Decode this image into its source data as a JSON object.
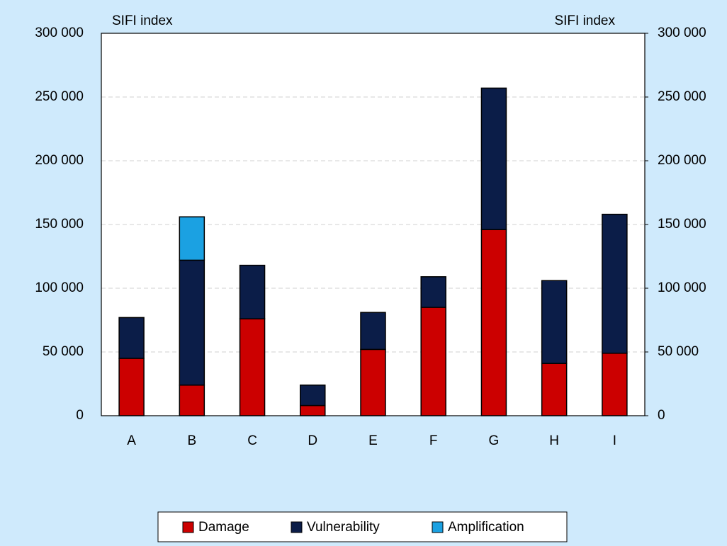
{
  "chart_data": {
    "type": "stacked_bar",
    "y_label": "SIFI index",
    "y2_label": "SIFI index",
    "categories": [
      "A",
      "B",
      "C",
      "D",
      "E",
      "F",
      "G",
      "H",
      "I"
    ],
    "series": [
      {
        "name": "Damage",
        "color": "#cc0000",
        "values": [
          45000,
          24000,
          76000,
          8000,
          52000,
          85000,
          146000,
          41000,
          49000
        ]
      },
      {
        "name": "Vulnerability",
        "color": "#0b1d48",
        "values": [
          32000,
          98000,
          42000,
          16000,
          29000,
          24000,
          111000,
          65000,
          109000
        ]
      },
      {
        "name": "Amplification",
        "color": "#1ba1e2",
        "values": [
          0,
          34000,
          0,
          0,
          0,
          0,
          0,
          0,
          0
        ]
      }
    ],
    "ylim": [
      0,
      300000
    ],
    "yticks": [
      0,
      {
        "value": 50000,
        "label": "50 000"
      },
      {
        "value": 100000,
        "label": "100 000"
      },
      {
        "value": 150000,
        "label": "150 000"
      },
      {
        "value": 200000,
        "label": "200 000"
      },
      {
        "value": 250000,
        "label": "250 000"
      },
      {
        "value": 300000,
        "label": "300 000"
      }
    ],
    "y2lim": [
      0,
      300000
    ],
    "y2ticks": [
      0,
      {
        "value": 50000,
        "label": "50 000"
      },
      {
        "value": 100000,
        "label": "100 000"
      },
      {
        "value": 150000,
        "label": "150 000"
      },
      {
        "value": 200000,
        "label": "200 000"
      },
      {
        "value": 250000,
        "label": "250 000"
      },
      {
        "value": 300000,
        "label": "300 000"
      }
    ],
    "grid": true,
    "legend": "bottom"
  }
}
